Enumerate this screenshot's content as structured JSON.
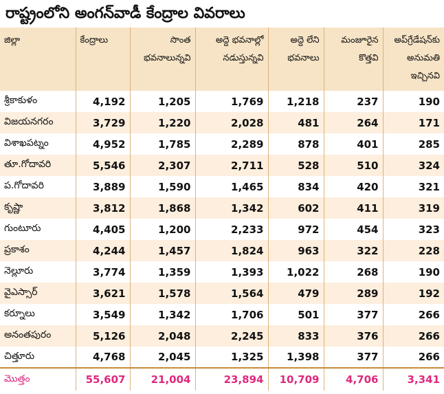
{
  "title": "రాష్ట్రంలోని అంగన్‌వాడీ కేంద్రాల వివరాలు",
  "headers": {
    "district": "జిల్లా",
    "centers": "కేంద్రాలు",
    "own_line1": "సొంత",
    "own_line2": "భవనాలున్నవి",
    "rented_line1": "అద్దె భవనాల్లో",
    "rented_line2": "నడుస్తున్నవి",
    "no_rent_line1": "అద్దె లేని",
    "no_rent_line2": "భవనాలు",
    "sanctioned_line1": "మంజూరైన",
    "sanctioned_line2": "కొత్తవి",
    "upgrade_line1": "అప్‌గ్రేడేషన్‌కు",
    "upgrade_line2": "అనుమతి",
    "upgrade_line3": "ఇచ్చినవి"
  },
  "rows": [
    {
      "district": "శ్రీకాకుళం",
      "centers": "4,192",
      "own": "1,205",
      "rented": "1,769",
      "no_rent": "1,218",
      "sanctioned": "237",
      "upgrade": "190"
    },
    {
      "district": "విజయనగరం",
      "centers": "3,729",
      "own": "1,220",
      "rented": "2,028",
      "no_rent": "481",
      "sanctioned": "264",
      "upgrade": "171"
    },
    {
      "district": "విశాఖపట్నం",
      "centers": "4,952",
      "own": "1,785",
      "rented": "2,289",
      "no_rent": "878",
      "sanctioned": "401",
      "upgrade": "285"
    },
    {
      "district": "తూ.గోదావరి",
      "centers": "5,546",
      "own": "2,307",
      "rented": "2,711",
      "no_rent": "528",
      "sanctioned": "510",
      "upgrade": "324"
    },
    {
      "district": "ప.గోదావరి",
      "centers": "3,889",
      "own": "1,590",
      "rented": "1,465",
      "no_rent": "834",
      "sanctioned": "420",
      "upgrade": "321"
    },
    {
      "district": "కృష్ణా",
      "centers": "3,812",
      "own": "1,868",
      "rented": "1,342",
      "no_rent": "602",
      "sanctioned": "411",
      "upgrade": "319"
    },
    {
      "district": "గుంటూరు",
      "centers": "4,405",
      "own": "1,200",
      "rented": "2,233",
      "no_rent": "972",
      "sanctioned": "454",
      "upgrade": "323"
    },
    {
      "district": "ప్రకాశం",
      "centers": "4,244",
      "own": "1,457",
      "rented": "1,824",
      "no_rent": "963",
      "sanctioned": "322",
      "upgrade": "228"
    },
    {
      "district": "నెల్లూరు",
      "centers": "3,774",
      "own": "1,359",
      "rented": "1,393",
      "no_rent": "1,022",
      "sanctioned": "268",
      "upgrade": "190"
    },
    {
      "district": "వైఎస్సార్",
      "centers": "3,621",
      "own": "1,578",
      "rented": "1,564",
      "no_rent": "479",
      "sanctioned": "289",
      "upgrade": "192"
    },
    {
      "district": "కర్నూలు",
      "centers": "3,549",
      "own": "1,342",
      "rented": "1,706",
      "no_rent": "501",
      "sanctioned": "377",
      "upgrade": "266"
    },
    {
      "district": "అనంతపురం",
      "centers": "5,126",
      "own": "2,048",
      "rented": "2,245",
      "no_rent": "833",
      "sanctioned": "376",
      "upgrade": "266"
    },
    {
      "district": "చిత్తూరు",
      "centers": "4,768",
      "own": "2,045",
      "rented": "1,325",
      "no_rent": "1,398",
      "sanctioned": "377",
      "upgrade": "266"
    }
  ],
  "total": {
    "district": "మొత్తం",
    "centers": "55,607",
    "own": "21,004",
    "rented": "23,894",
    "no_rent": "10,709",
    "sanctioned": "4,706",
    "upgrade": "3,341"
  }
}
